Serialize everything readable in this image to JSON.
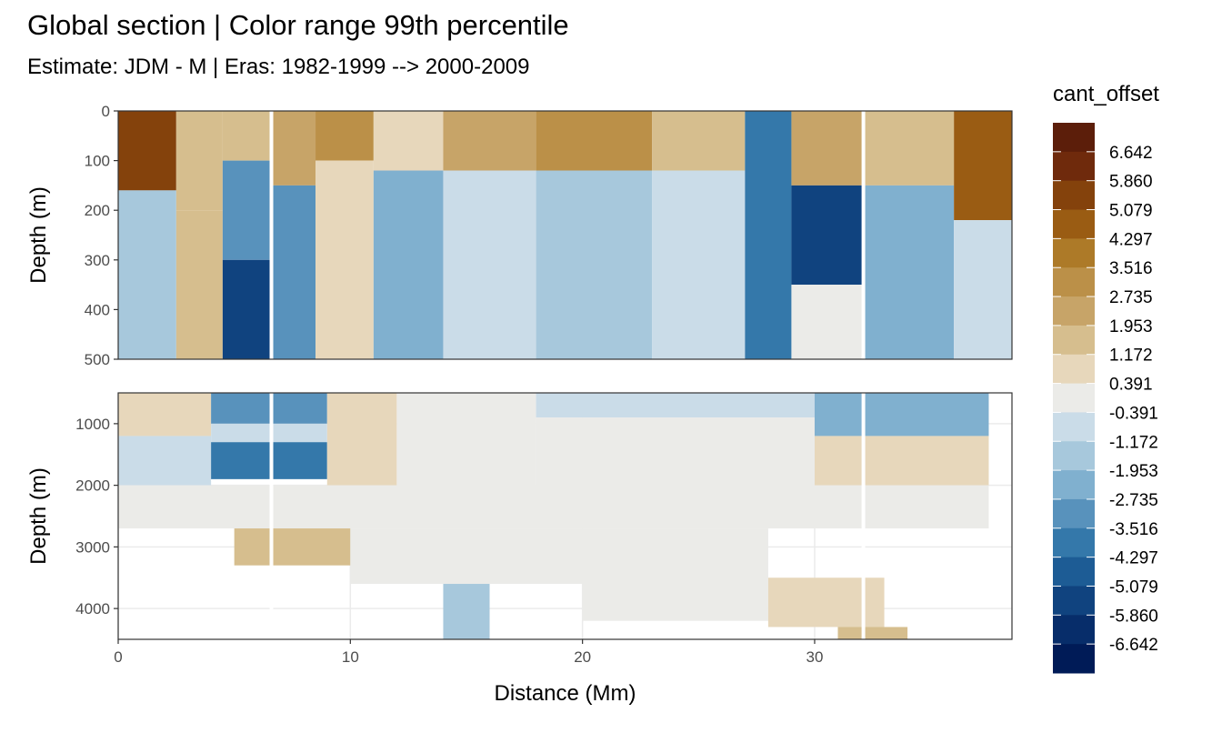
{
  "title": "Global section | Color range 99th percentile",
  "subtitle": "Estimate: JDM - M | Eras: 1982-1999 --> 2000-2009",
  "chart_data": {
    "type": "heatmap",
    "xlabel": "Distance (Mm)",
    "xlim": [
      0,
      38.5
    ],
    "xticks": [
      "0",
      "10",
      "20",
      "30"
    ],
    "xtick_values": [
      0,
      10,
      20,
      30
    ],
    "gaps_x": [
      6.6,
      32.1
    ],
    "panels": [
      {
        "ylabel": "Depth (m)",
        "ylim": [
          0,
          500
        ],
        "yticks": [
          "0",
          "100",
          "200",
          "300",
          "400",
          "500"
        ],
        "ytick_values": [
          0,
          100,
          200,
          300,
          400,
          500
        ],
        "gridlines": false,
        "regions": [
          {
            "x0": 0,
            "x1": 2.5,
            "y0": 0,
            "y1": 160,
            "value": 5.2
          },
          {
            "x0": 0,
            "x1": 2.5,
            "y0": 160,
            "y1": 500,
            "value": -1.5
          },
          {
            "x0": 2.5,
            "x1": 4.5,
            "y0": 0,
            "y1": 200,
            "value": 1.8
          },
          {
            "x0": 2.5,
            "x1": 4.5,
            "y0": 200,
            "y1": 500,
            "value": 1.2
          },
          {
            "x0": 4.5,
            "x1": 6.6,
            "y0": 0,
            "y1": 100,
            "value": 1.4
          },
          {
            "x0": 4.5,
            "x1": 6.6,
            "y0": 100,
            "y1": 300,
            "value": -3.2
          },
          {
            "x0": 4.5,
            "x1": 6.6,
            "y0": 300,
            "y1": 500,
            "value": -5.3
          },
          {
            "x0": 6.6,
            "x1": 8.5,
            "y0": 0,
            "y1": 150,
            "value": 2.6
          },
          {
            "x0": 6.6,
            "x1": 8.5,
            "y0": 150,
            "y1": 500,
            "value": -3.0
          },
          {
            "x0": 8.5,
            "x1": 11,
            "y0": 0,
            "y1": 100,
            "value": 2.8
          },
          {
            "x0": 8.5,
            "x1": 11,
            "y0": 100,
            "y1": 500,
            "value": 0.8
          },
          {
            "x0": 11,
            "x1": 14,
            "y0": 0,
            "y1": 120,
            "value": 0.6
          },
          {
            "x0": 11,
            "x1": 14,
            "y0": 120,
            "y1": 500,
            "value": -2.6
          },
          {
            "x0": 14,
            "x1": 18,
            "y0": 0,
            "y1": 120,
            "value": 2.2
          },
          {
            "x0": 14,
            "x1": 18,
            "y0": 120,
            "y1": 500,
            "value": -0.6
          },
          {
            "x0": 18,
            "x1": 23,
            "y0": 0,
            "y1": 120,
            "value": 3.4
          },
          {
            "x0": 18,
            "x1": 23,
            "y0": 120,
            "y1": 500,
            "value": -1.3
          },
          {
            "x0": 23,
            "x1": 27,
            "y0": 0,
            "y1": 120,
            "value": 1.6
          },
          {
            "x0": 23,
            "x1": 27,
            "y0": 120,
            "y1": 500,
            "value": -0.9
          },
          {
            "x0": 27,
            "x1": 29,
            "y0": 0,
            "y1": 500,
            "value": -3.8
          },
          {
            "x0": 29,
            "x1": 32.1,
            "y0": 0,
            "y1": 150,
            "value": 2.4
          },
          {
            "x0": 29,
            "x1": 32.1,
            "y0": 150,
            "y1": 350,
            "value": -5.6
          },
          {
            "x0": 29,
            "x1": 32.1,
            "y0": 350,
            "y1": 500,
            "value": 0.2
          },
          {
            "x0": 32.1,
            "x1": 36,
            "y0": 0,
            "y1": 150,
            "value": 1.4
          },
          {
            "x0": 32.1,
            "x1": 36,
            "y0": 150,
            "y1": 500,
            "value": -2.2
          },
          {
            "x0": 36,
            "x1": 38.5,
            "y0": 0,
            "y1": 220,
            "value": 4.9
          },
          {
            "x0": 36,
            "x1": 38.5,
            "y0": 220,
            "y1": 500,
            "value": -0.6
          }
        ]
      },
      {
        "ylabel": "Depth (m)",
        "ylim": [
          500,
          4500
        ],
        "yticks": [
          "1000",
          "2000",
          "3000",
          "4000"
        ],
        "ytick_values": [
          1000,
          2000,
          3000,
          4000
        ],
        "gridlines": true,
        "regions": [
          {
            "x0": 0,
            "x1": 4,
            "y0": 500,
            "y1": 1200,
            "value": 0.6
          },
          {
            "x0": 0,
            "x1": 4,
            "y0": 1200,
            "y1": 2000,
            "value": -0.8
          },
          {
            "x0": 4,
            "x1": 9,
            "y0": 500,
            "y1": 1000,
            "value": -3.4
          },
          {
            "x0": 4,
            "x1": 9,
            "y0": 1000,
            "y1": 1300,
            "value": -0.9
          },
          {
            "x0": 4,
            "x1": 9,
            "y0": 1300,
            "y1": 1900,
            "value": -3.6
          },
          {
            "x0": 9,
            "x1": 12,
            "y0": 500,
            "y1": 2000,
            "value": 0.6
          },
          {
            "x0": 12,
            "x1": 18,
            "y0": 500,
            "y1": 2000,
            "value": 0.0
          },
          {
            "x0": 18,
            "x1": 30,
            "y0": 500,
            "y1": 900,
            "value": -0.7
          },
          {
            "x0": 18,
            "x1": 30,
            "y0": 900,
            "y1": 2000,
            "value": 0.0
          },
          {
            "x0": 30,
            "x1": 37.5,
            "y0": 500,
            "y1": 1200,
            "value": -2.1
          },
          {
            "x0": 30,
            "x1": 37.5,
            "y0": 1200,
            "y1": 2000,
            "value": 0.5
          },
          {
            "x0": 0,
            "x1": 37.5,
            "y0": 2000,
            "y1": 2700,
            "value": 0.0
          },
          {
            "x0": 5,
            "x1": 10,
            "y0": 2700,
            "y1": 3300,
            "value": 1.3
          },
          {
            "x0": 10,
            "x1": 20,
            "y0": 2700,
            "y1": 3600,
            "value": -0.3
          },
          {
            "x0": 14,
            "x1": 16,
            "y0": 3600,
            "y1": 4500,
            "value": -1.4
          },
          {
            "x0": 20,
            "x1": 28,
            "y0": 2700,
            "y1": 4200,
            "value": 0.0
          },
          {
            "x0": 28,
            "x1": 33,
            "y0": 3500,
            "y1": 4300,
            "value": 1.1
          },
          {
            "x0": 31,
            "x1": 34,
            "y0": 4300,
            "y1": 4500,
            "value": 1.8
          }
        ]
      }
    ],
    "colorbar": {
      "title": "cant_offset",
      "labels": [
        "6.642",
        "5.860",
        "5.079",
        "4.297",
        "3.516",
        "2.735",
        "1.953",
        "1.172",
        "0.391",
        "-0.391",
        "-1.172",
        "-1.953",
        "-2.735",
        "-3.516",
        "-4.297",
        "-5.079",
        "-5.860",
        "-6.642"
      ],
      "colors": [
        "#5c1e0a",
        "#6f2a0c",
        "#84420c",
        "#9a5c13",
        "#ad7a28",
        "#bb9048",
        "#c7a468",
        "#d6be8e",
        "#e7d7bb",
        "#ebebe8",
        "#cadce8",
        "#a7c8dc",
        "#80b0cf",
        "#5892bc",
        "#3478aa",
        "#1d5c95",
        "#10437f",
        "#072d6a",
        "#001b57"
      ]
    }
  }
}
